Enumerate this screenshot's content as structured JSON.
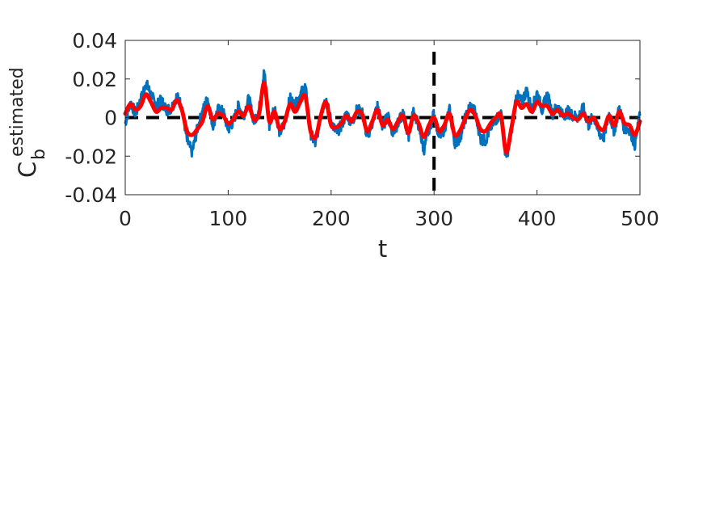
{
  "chart_data": {
    "type": "line",
    "title": "",
    "xlabel": "t",
    "ylabel": {
      "main": "C",
      "subscript": "b",
      "superscript": "estimated"
    },
    "xlim": [
      0,
      500
    ],
    "ylim": [
      -0.04,
      0.04
    ],
    "xticks": [
      0,
      100,
      200,
      300,
      400,
      500
    ],
    "xtick_labels": [
      "0",
      "100",
      "200",
      "300",
      "400",
      "500"
    ],
    "yticks": [
      -0.04,
      -0.02,
      0,
      0.02,
      0.04
    ],
    "ytick_labels": [
      "-0.04",
      "-0.02",
      "0",
      "0.02",
      "0.04"
    ],
    "grid": false,
    "legend": "none",
    "reference_lines": [
      {
        "orientation": "horizontal",
        "value": 0,
        "style": "dashed",
        "color": "#000000"
      },
      {
        "orientation": "vertical",
        "value": 300,
        "style": "dashed",
        "color": "#000000"
      }
    ],
    "series": [
      {
        "color": "#0072BD",
        "style": "noisy",
        "x": [
          0,
          5,
          10,
          15,
          20,
          25,
          30,
          35,
          40,
          45,
          50,
          55,
          60,
          65,
          70,
          75,
          80,
          85,
          90,
          95,
          100,
          105,
          110,
          115,
          120,
          125,
          130,
          135,
          140,
          145,
          150,
          155,
          160,
          165,
          170,
          175,
          180,
          185,
          190,
          195,
          200,
          205,
          210,
          215,
          220,
          225,
          230,
          235,
          240,
          245,
          250,
          255,
          260,
          265,
          270,
          275,
          280,
          285,
          290,
          295,
          300,
          305,
          310,
          315,
          320,
          325,
          330,
          335,
          340,
          345,
          350,
          355,
          360,
          365,
          370,
          375,
          380,
          385,
          390,
          395,
          400,
          405,
          410,
          415,
          420,
          425,
          430,
          435,
          440,
          445,
          450,
          455,
          460,
          465,
          470,
          475,
          480,
          485,
          490,
          495,
          500
        ],
        "values": [
          -0.003,
          0.008,
          0.002,
          0.009,
          0.018,
          0.012,
          0.006,
          0.009,
          0.004,
          0.005,
          0.011,
          0.006,
          -0.012,
          -0.018,
          -0.006,
          0.003,
          0.01,
          -0.004,
          0.004,
          0.003,
          -0.006,
          -0.002,
          0.006,
          0.001,
          0.01,
          -0.002,
          0.004,
          0.024,
          -0.004,
          0.006,
          -0.008,
          -0.003,
          0.01,
          0.006,
          0.012,
          0.016,
          -0.008,
          -0.014,
          0.002,
          0.01,
          -0.002,
          -0.008,
          -0.004,
          0.002,
          -0.003,
          0.004,
          0.003,
          -0.01,
          -0.003,
          0.006,
          -0.005,
          0.001,
          -0.008,
          -0.003,
          0.002,
          -0.01,
          0.003,
          -0.004,
          -0.017,
          -0.006,
          0.002,
          -0.01,
          -0.006,
          0.004,
          -0.013,
          -0.011,
          -0.001,
          0.006,
          0.003,
          -0.011,
          -0.012,
          -0.005,
          -0.001,
          0.002,
          -0.022,
          -0.008,
          0.012,
          0.008,
          0.014,
          0.004,
          0.013,
          0.004,
          0.012,
          0.002,
          0.006,
          0.001,
          0.003,
          0.001,
          0.0,
          0.005,
          -0.004,
          0.001,
          -0.008,
          -0.01,
          0.002,
          -0.007,
          0.005,
          -0.006,
          -0.006,
          -0.014,
          0.001
        ]
      },
      {
        "color": "#FF0000",
        "style": "smooth",
        "x": [
          0,
          5,
          10,
          15,
          20,
          25,
          30,
          35,
          40,
          45,
          50,
          55,
          60,
          65,
          70,
          75,
          80,
          85,
          90,
          95,
          100,
          105,
          110,
          115,
          120,
          125,
          130,
          135,
          140,
          145,
          150,
          155,
          160,
          165,
          170,
          175,
          180,
          185,
          190,
          195,
          200,
          205,
          210,
          215,
          220,
          225,
          230,
          235,
          240,
          245,
          250,
          255,
          260,
          265,
          270,
          275,
          280,
          285,
          290,
          295,
          300,
          305,
          310,
          315,
          320,
          325,
          330,
          335,
          340,
          345,
          350,
          355,
          360,
          365,
          370,
          375,
          380,
          385,
          390,
          395,
          400,
          405,
          410,
          415,
          420,
          425,
          430,
          435,
          440,
          445,
          450,
          455,
          460,
          465,
          470,
          475,
          480,
          485,
          490,
          495,
          500
        ],
        "values": [
          0.002,
          0.007,
          0.004,
          0.006,
          0.012,
          0.008,
          0.003,
          0.005,
          0.005,
          0.004,
          0.009,
          0.004,
          -0.007,
          -0.009,
          -0.006,
          -0.002,
          0.006,
          -0.001,
          0.002,
          0.001,
          -0.003,
          -0.001,
          0.003,
          0.001,
          0.006,
          -0.001,
          0.002,
          0.018,
          -0.002,
          0.003,
          -0.006,
          -0.002,
          0.007,
          0.003,
          0.008,
          0.011,
          -0.007,
          -0.01,
          0.001,
          0.008,
          -0.004,
          -0.005,
          -0.003,
          0.001,
          -0.002,
          0.003,
          0.002,
          -0.007,
          -0.002,
          0.004,
          -0.004,
          -0.001,
          -0.006,
          -0.002,
          0.001,
          -0.008,
          0.001,
          -0.003,
          -0.01,
          -0.004,
          0.0,
          -0.007,
          -0.004,
          0.002,
          -0.009,
          -0.007,
          -0.001,
          0.004,
          0.001,
          -0.006,
          -0.007,
          -0.003,
          0.0,
          0.001,
          -0.018,
          -0.006,
          0.008,
          0.005,
          0.007,
          0.003,
          0.008,
          0.006,
          0.006,
          0.002,
          0.004,
          0.001,
          0.002,
          0.0,
          -0.001,
          0.002,
          -0.002,
          0.0,
          -0.005,
          -0.006,
          0.001,
          -0.004,
          0.003,
          -0.003,
          -0.004,
          -0.009,
          -0.002
        ]
      }
    ]
  }
}
